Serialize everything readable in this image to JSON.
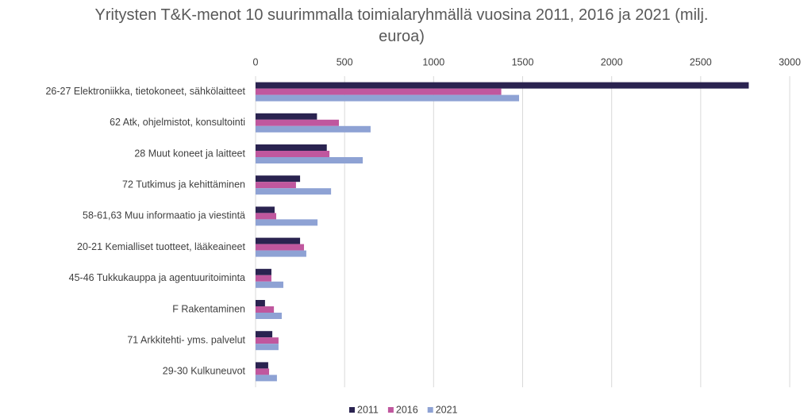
{
  "chart_data": {
    "type": "hbar",
    "title": "Yritysten T&K-menot 10 suurimmalla toimialaryhmällä vuosina 2011, 2016 ja 2021 (milj. euroa)",
    "categories": [
      "26-27 Elektroniikka, tietokoneet, sähkölaitteet",
      "62 Atk, ohjelmistot, konsultointi",
      "28 Muut koneet ja laitteet",
      "72 Tutkimus ja kehittäminen",
      "58-61,63 Muu informaatio ja viestintä",
      "20-21 Kemialliset tuotteet, lääkeaineet",
      "45-46 Tukkukauppa ja agentuuritoiminta",
      "F Rakentaminen",
      "71 Arkkitehti- yms. palvelut",
      "29-30 Kulkuneuvot"
    ],
    "series": [
      {
        "name": "2011",
        "color": "#2a2350",
        "values": [
          2770,
          345,
          400,
          250,
          107,
          250,
          89,
          53,
          94,
          71
        ]
      },
      {
        "name": "2016",
        "color": "#c0579e",
        "values": [
          1380,
          468,
          415,
          227,
          116,
          272,
          89,
          103,
          129,
          76
        ]
      },
      {
        "name": "2021",
        "color": "#8ea2d4",
        "values": [
          1480,
          646,
          602,
          424,
          348,
          285,
          156,
          147,
          129,
          120
        ]
      }
    ],
    "xlim": [
      0,
      3000
    ],
    "xticks": [
      0,
      500,
      1000,
      1500,
      2000,
      2500,
      3000
    ],
    "grid": true,
    "legend": "bottom"
  }
}
